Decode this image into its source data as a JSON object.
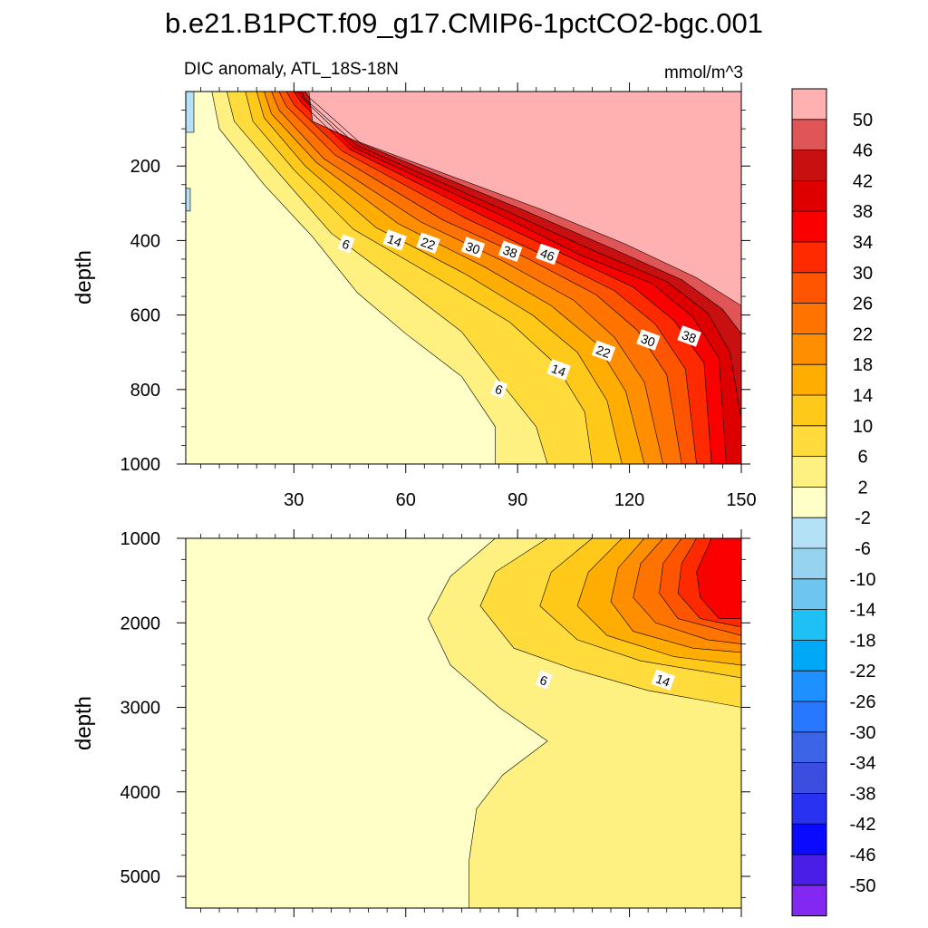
{
  "figure": {
    "main_title": "b.e21.B1PCT.f09_g17.CMIP6-1pctCO2-bgc.001",
    "left_subtitle": "DIC anomaly, ATL_18S-18N",
    "right_subtitle": "mmol/m^3"
  },
  "chart_data": [
    {
      "type": "contour",
      "name": "upper-panel",
      "title": "DIC anomaly, ATL_18S-18N",
      "units": "mmol/m^3",
      "xlabel": "",
      "ylabel": "depth",
      "xlim": [
        1,
        150
      ],
      "ylim": [
        1000,
        0
      ],
      "xticks": [
        30,
        60,
        90,
        120,
        150
      ],
      "xtick_labels": [
        "30",
        "60",
        "90",
        "120",
        "150"
      ],
      "yticks": [
        200,
        400,
        600,
        800,
        1000
      ],
      "ytick_labels": [
        "200",
        "400",
        "600",
        "800",
        "1000"
      ],
      "isolines": [
        {
          "level": 2,
          "points": [
            [
              8,
              0
            ],
            [
              10,
              100
            ],
            [
              22,
              250
            ],
            [
              35,
              390
            ],
            [
              47,
              540
            ],
            [
              60,
              650
            ],
            [
              75,
              765
            ],
            [
              84,
              900
            ],
            [
              84,
              1000
            ]
          ]
        },
        {
          "level": 6,
          "points": [
            [
              12,
              0
            ],
            [
              14,
              80
            ],
            [
              26,
              220
            ],
            [
              40,
              380
            ],
            [
              60,
              530
            ],
            [
              75,
              645
            ],
            [
              85,
              775
            ],
            [
              95,
              900
            ],
            [
              98,
              1000
            ]
          ]
        },
        {
          "level": 10,
          "points": [
            [
              17,
              0
            ],
            [
              19,
              80
            ],
            [
              30,
              210
            ],
            [
              46,
              370
            ],
            [
              70,
              510
            ],
            [
              88,
              620
            ],
            [
              100,
              730
            ],
            [
              108,
              860
            ],
            [
              110,
              1000
            ]
          ]
        },
        {
          "level": 14,
          "points": [
            [
              20,
              0
            ],
            [
              22,
              70
            ],
            [
              33,
              200
            ],
            [
              52,
              365
            ],
            [
              76,
              490
            ],
            [
              94,
              600
            ],
            [
              106,
              700
            ],
            [
              114,
              830
            ],
            [
              118,
              1000
            ]
          ]
        },
        {
          "level": 18,
          "points": [
            [
              22,
              0
            ],
            [
              24,
              60
            ],
            [
              36,
              190
            ],
            [
              58,
              355
            ],
            [
              81,
              470
            ],
            [
              99,
              575
            ],
            [
              111,
              675
            ],
            [
              119,
              805
            ],
            [
              124,
              1000
            ]
          ]
        },
        {
          "level": 22,
          "points": [
            [
              24,
              0
            ],
            [
              26,
              50
            ],
            [
              38,
              180
            ],
            [
              64,
              350
            ],
            [
              86,
              455
            ],
            [
              105,
              560
            ],
            [
              116,
              660
            ],
            [
              124,
              780
            ],
            [
              129,
              1000
            ]
          ]
        },
        {
          "level": 26,
          "points": [
            [
              26,
              0
            ],
            [
              28,
              40
            ],
            [
              41,
              170
            ],
            [
              70,
              345
            ],
            [
              92,
              445
            ],
            [
              111,
              545
            ],
            [
              122,
              640
            ],
            [
              130,
              760
            ],
            [
              134,
              1000
            ]
          ]
        },
        {
          "level": 30,
          "points": [
            [
              28,
              0
            ],
            [
              30,
              35
            ],
            [
              43,
              160
            ],
            [
              76,
              340
            ],
            [
              97,
              440
            ],
            [
              116,
              535
            ],
            [
              127,
              625
            ],
            [
              135,
              745
            ],
            [
              138,
              1000
            ]
          ]
        },
        {
          "level": 34,
          "points": [
            [
              30,
              0
            ],
            [
              32,
              30
            ],
            [
              45,
              155
            ],
            [
              81,
              335
            ],
            [
              103,
              440
            ],
            [
              121,
              525
            ],
            [
              132,
              615
            ],
            [
              140,
              730
            ],
            [
              142,
              1000
            ]
          ]
        },
        {
          "level": 38,
          "points": [
            [
              31,
              0
            ],
            [
              33,
              25
            ],
            [
              46,
              150
            ],
            [
              85,
              330
            ],
            [
              107,
              440
            ],
            [
              126,
              515
            ],
            [
              137,
              605
            ],
            [
              144,
              715
            ],
            [
              146,
              1000
            ]
          ]
        },
        {
          "level": 42,
          "points": [
            [
              32,
              0
            ],
            [
              33,
              20
            ],
            [
              47,
              145
            ],
            [
              88,
              325
            ],
            [
              111,
              430
            ],
            [
              130,
              510
            ],
            [
              141,
              595
            ],
            [
              147,
              700
            ],
            [
              150,
              880
            ]
          ]
        },
        {
          "level": 46,
          "points": [
            [
              33,
              0
            ],
            [
              34,
              15
            ],
            [
              48,
              140
            ],
            [
              92,
              320
            ],
            [
              115,
              420
            ],
            [
              134,
              505
            ],
            [
              145,
              585
            ],
            [
              150,
              650
            ]
          ]
        },
        {
          "level": 50,
          "points": [
            [
              34,
              0
            ],
            [
              35,
              80
            ],
            [
              46,
              130
            ],
            [
              96,
              315
            ],
            [
              119,
              410
            ],
            [
              138,
              500
            ],
            [
              150,
              575
            ]
          ]
        }
      ],
      "contour_labels": [
        {
          "text": "6",
          "x": 44,
          "y": 410
        },
        {
          "text": "14",
          "x": 57,
          "y": 400
        },
        {
          "text": "22",
          "x": 66,
          "y": 408
        },
        {
          "text": "30",
          "x": 78,
          "y": 420
        },
        {
          "text": "38",
          "x": 88,
          "y": 430
        },
        {
          "text": "46",
          "x": 98,
          "y": 438
        },
        {
          "text": "6",
          "x": 85,
          "y": 800
        },
        {
          "text": "14",
          "x": 101,
          "y": 748
        },
        {
          "text": "22",
          "x": 113,
          "y": 698
        },
        {
          "text": "30",
          "x": 125,
          "y": 668
        },
        {
          "text": "38",
          "x": 136,
          "y": 658
        }
      ]
    },
    {
      "type": "contour",
      "name": "lower-panel",
      "xlabel": "",
      "ylabel": "depth",
      "xlim": [
        1,
        150
      ],
      "ylim": [
        5375,
        1000
      ],
      "yticks": [
        1000,
        2000,
        3000,
        4000,
        5000
      ],
      "ytick_labels": [
        "1000",
        "2000",
        "3000",
        "4000",
        "5000"
      ],
      "xticks": [
        30,
        60,
        90,
        120,
        150
      ],
      "isolines": [
        {
          "level": 2,
          "points": [
            [
              84,
              1000
            ],
            [
              72,
              1450
            ],
            [
              66,
              1950
            ],
            [
              72,
              2500
            ],
            [
              85,
              3000
            ],
            [
              98,
              3400
            ],
            [
              86,
              3800
            ],
            [
              79,
              4200
            ],
            [
              77,
              4800
            ],
            [
              77,
              5375
            ]
          ]
        },
        {
          "level": 6,
          "points": [
            [
              98,
              1000
            ],
            [
              84,
              1400
            ],
            [
              80,
              1800
            ],
            [
              89,
              2300
            ],
            [
              105,
              2550
            ],
            [
              125,
              2800
            ],
            [
              150,
              3000
            ]
          ]
        },
        {
          "level": 10,
          "points": [
            [
              110,
              1000
            ],
            [
              99,
              1400
            ],
            [
              96,
              1800
            ],
            [
              106,
              2200
            ],
            [
              123,
              2450
            ],
            [
              150,
              2650
            ]
          ]
        },
        {
          "level": 14,
          "points": [
            [
              118,
              1000
            ],
            [
              109,
              1400
            ],
            [
              106,
              1800
            ],
            [
              114,
              2150
            ],
            [
              132,
              2400
            ],
            [
              150,
              2500
            ]
          ]
        },
        {
          "level": 18,
          "points": [
            [
              124,
              1000
            ],
            [
              117,
              1350
            ],
            [
              115,
              1750
            ],
            [
              121,
              2100
            ],
            [
              137,
              2300
            ],
            [
              150,
              2350
            ]
          ]
        },
        {
          "level": 22,
          "points": [
            [
              129,
              1000
            ],
            [
              123,
              1300
            ],
            [
              121,
              1700
            ],
            [
              127,
              2000
            ],
            [
              141,
              2200
            ],
            [
              150,
              2250
            ]
          ]
        },
        {
          "level": 26,
          "points": [
            [
              134,
              1000
            ],
            [
              129,
              1300
            ],
            [
              128,
              1650
            ],
            [
              133,
              1950
            ],
            [
              150,
              2150
            ]
          ]
        },
        {
          "level": 30,
          "points": [
            [
              138,
              1000
            ],
            [
              134,
              1300
            ],
            [
              133,
              1650
            ],
            [
              139,
              1950
            ],
            [
              150,
              2050
            ]
          ]
        },
        {
          "level": 34,
          "points": [
            [
              142,
              1000
            ],
            [
              138,
              1400
            ],
            [
              139,
              1700
            ],
            [
              144,
              1950
            ],
            [
              150,
              1950
            ]
          ]
        }
      ],
      "contour_labels": [
        {
          "text": "6",
          "x": 97,
          "y": 2680
        },
        {
          "text": "14",
          "x": 129,
          "y": 2680
        }
      ]
    }
  ],
  "colorbar": {
    "labels": [
      "50",
      "46",
      "42",
      "38",
      "34",
      "30",
      "26",
      "22",
      "18",
      "14",
      "10",
      "6",
      "2",
      "-2",
      "-6",
      "-10",
      "-14",
      "-18",
      "-22",
      "-26",
      "-30",
      "-34",
      "-38",
      "-42",
      "-46",
      "-50"
    ],
    "colors": [
      "#ffb0b0",
      "#e05656",
      "#c81010",
      "#de0000",
      "#fa0000",
      "#ff2a00",
      "#ff5500",
      "#ff7300",
      "#ff8f00",
      "#ffad00",
      "#ffc919",
      "#ffdc3c",
      "#fff082",
      "#ffffc8",
      "#b4e1f5",
      "#96d3f0",
      "#6ec6f0",
      "#1ec0f5",
      "#00a8f5",
      "#1e90ff",
      "#2878ff",
      "#3c64e6",
      "#3c4ee0",
      "#2832f0",
      "#0a0aff",
      "#4a1ee6",
      "#8228f0"
    ],
    "contour_fill_levels": [
      -2,
      2,
      6,
      10,
      14,
      18,
      22,
      26,
      30,
      34,
      38,
      42,
      46,
      50
    ]
  }
}
